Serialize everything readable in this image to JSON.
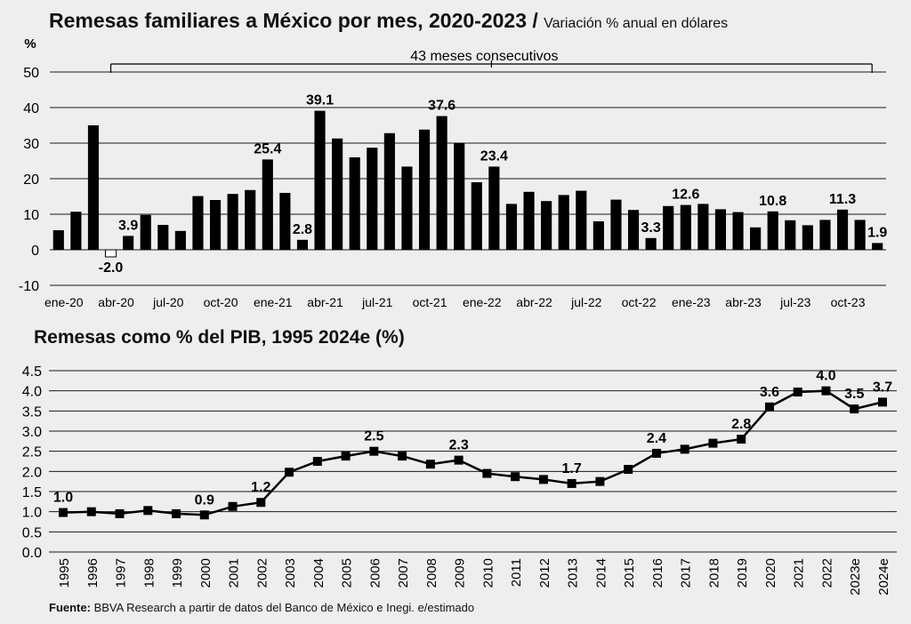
{
  "header": {
    "title": "Remesas familiares a México por mes, 2020-2023 / ",
    "subtitle": "Variación % anual en dólares"
  },
  "footer": {
    "source_label": "Fuente:",
    "source_text": " BBVA Research a partir de datos del Banco de México e Inegi. e/estimado"
  },
  "chart_data": [
    {
      "type": "bar",
      "unit_label": "%",
      "annotation": "43 meses consecutivos",
      "ylim": [
        -10,
        50
      ],
      "yticks": [
        -10,
        0,
        10,
        20,
        30,
        40,
        50
      ],
      "grid": true,
      "categories": [
        "ene-20",
        "feb-20",
        "mar-20",
        "abr-20",
        "may-20",
        "jun-20",
        "jul-20",
        "ago-20",
        "sep-20",
        "oct-20",
        "nov-20",
        "dic-20",
        "ene-21",
        "feb-21",
        "mar-21",
        "abr-21",
        "may-21",
        "jun-21",
        "jul-21",
        "ago-21",
        "sep-21",
        "oct-21",
        "nov-21",
        "dic-21",
        "ene-22",
        "feb-22",
        "mar-22",
        "abr-22",
        "may-22",
        "jun-22",
        "jul-22",
        "ago-22",
        "sep-22",
        "oct-22",
        "nov-22",
        "dic-22",
        "ene-23",
        "feb-23",
        "mar-23",
        "abr-23",
        "may-23",
        "jun-23",
        "jul-23",
        "ago-23",
        "sep-23",
        "oct-23",
        "nov-23",
        "dic-23"
      ],
      "values": [
        5.5,
        10.7,
        35.0,
        -2.0,
        3.9,
        9.8,
        7.0,
        5.3,
        15.1,
        14.0,
        15.7,
        16.8,
        25.4,
        16.0,
        2.8,
        39.1,
        31.3,
        26.0,
        28.7,
        32.8,
        23.4,
        33.8,
        37.6,
        30.0,
        19.0,
        23.4,
        12.9,
        16.3,
        13.7,
        15.4,
        16.6,
        8.0,
        14.1,
        11.2,
        3.3,
        12.3,
        12.6,
        12.9,
        11.4,
        10.6,
        6.3,
        10.8,
        8.3,
        6.9,
        8.4,
        11.3,
        8.4,
        1.9
      ],
      "negative_style": "outline",
      "tick_labels": [
        {
          "index": 0,
          "label": "ene-20"
        },
        {
          "index": 3,
          "label": "abr-20"
        },
        {
          "index": 6,
          "label": "jul-20"
        },
        {
          "index": 9,
          "label": "oct-20"
        },
        {
          "index": 12,
          "label": "ene-21"
        },
        {
          "index": 15,
          "label": "abr-21"
        },
        {
          "index": 18,
          "label": "jul-21"
        },
        {
          "index": 21,
          "label": "oct-21"
        },
        {
          "index": 24,
          "label": "ene-22"
        },
        {
          "index": 27,
          "label": "abr-22"
        },
        {
          "index": 30,
          "label": "jul-22"
        },
        {
          "index": 33,
          "label": "oct-22"
        },
        {
          "index": 36,
          "label": "ene-23"
        },
        {
          "index": 39,
          "label": "abr-23"
        },
        {
          "index": 42,
          "label": "jul-23"
        },
        {
          "index": 45,
          "label": "oct-23"
        }
      ],
      "data_labels": [
        {
          "index": 3,
          "text": "-2.0"
        },
        {
          "index": 4,
          "text": "3.9"
        },
        {
          "index": 12,
          "text": "25.4"
        },
        {
          "index": 14,
          "text": "2.8"
        },
        {
          "index": 15,
          "text": "39.1"
        },
        {
          "index": 22,
          "text": "37.6"
        },
        {
          "index": 25,
          "text": "23.4"
        },
        {
          "index": 34,
          "text": "3.3"
        },
        {
          "index": 36,
          "text": "12.6"
        },
        {
          "index": 41,
          "text": "10.8"
        },
        {
          "index": 45,
          "text": "11.3"
        },
        {
          "index": 47,
          "text": "1.9"
        }
      ],
      "colors": {
        "bar": "#000000",
        "negative_fill": "#ffffff",
        "grid": "#1a1a1a"
      }
    },
    {
      "type": "line",
      "title": "Remesas como % del PIB, 1995 2024e (%)",
      "ylim": [
        0,
        4.5
      ],
      "yticks": [
        "0.0",
        "0.5",
        "1.0",
        "1.5",
        "2.0",
        "2.5",
        "3.0",
        "3.5",
        "4.0",
        "4.5"
      ],
      "grid": true,
      "x": [
        "1995",
        "1996",
        "1997",
        "1998",
        "1999",
        "2000",
        "2001",
        "2002",
        "2003",
        "2004",
        "2005",
        "2006",
        "2007",
        "2008",
        "2009",
        "2010",
        "2011",
        "2012",
        "2013",
        "2014",
        "2015",
        "2016",
        "2017",
        "2018",
        "2019",
        "2020",
        "2021",
        "2022",
        "2023e",
        "2024e"
      ],
      "values": [
        0.98,
        1.0,
        0.95,
        1.03,
        0.95,
        0.92,
        1.13,
        1.23,
        1.98,
        2.25,
        2.38,
        2.5,
        2.38,
        2.18,
        2.28,
        1.95,
        1.87,
        1.8,
        1.7,
        1.75,
        2.05,
        2.45,
        2.55,
        2.7,
        2.8,
        3.6,
        3.97,
        4.0,
        3.55,
        3.72
      ],
      "data_labels": [
        {
          "index": 0,
          "text": "1.0"
        },
        {
          "index": 5,
          "text": "0.9"
        },
        {
          "index": 7,
          "text": "1.2"
        },
        {
          "index": 11,
          "text": "2.5"
        },
        {
          "index": 14,
          "text": "2.3"
        },
        {
          "index": 18,
          "text": "1.7"
        },
        {
          "index": 21,
          "text": "2.4"
        },
        {
          "index": 24,
          "text": "2.8"
        },
        {
          "index": 25,
          "text": "3.6"
        },
        {
          "index": 27,
          "text": "4.0"
        },
        {
          "index": 28,
          "text": "3.5"
        },
        {
          "index": 29,
          "text": "3.7"
        }
      ],
      "colors": {
        "line": "#000000",
        "marker": "#000000",
        "grid": "#1a1a1a"
      }
    }
  ]
}
